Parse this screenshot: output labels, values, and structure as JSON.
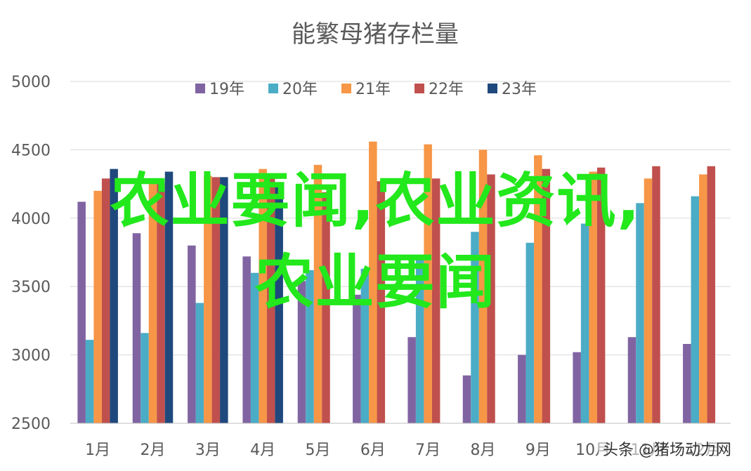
{
  "chart_data": {
    "type": "bar",
    "title": "能繁母猪存栏量",
    "categories": [
      "1月",
      "2月",
      "3月",
      "4月",
      "5月",
      "6月",
      "7月",
      "8月",
      "9月",
      "10月",
      "11月",
      "12月"
    ],
    "series": [
      {
        "name": "19年",
        "color": "#8064a2",
        "values": [
          4120,
          3890,
          3800,
          3720,
          3540,
          3440,
          3130,
          2850,
          3000,
          3020,
          3130,
          3080
        ]
      },
      {
        "name": "20年",
        "color": "#4bacc6",
        "values": [
          3110,
          3160,
          3380,
          3600,
          3620,
          3630,
          3700,
          3900,
          3820,
          3960,
          4110,
          4160
        ]
      },
      {
        "name": "21年",
        "color": "#f79646",
        "values": [
          4200,
          4250,
          4310,
          4360,
          4390,
          4560,
          4540,
          4500,
          4460,
          4340,
          4290,
          4320
        ]
      },
      {
        "name": "22年",
        "color": "#c0504d",
        "values": [
          4290,
          4260,
          4300,
          4300,
          4190,
          4270,
          4290,
          4320,
          4360,
          4370,
          4380,
          4380
        ]
      },
      {
        "name": "23年",
        "color": "#1f497d",
        "values": [
          4360,
          4340,
          4300,
          4240,
          null,
          null,
          null,
          null,
          null,
          null,
          null,
          null
        ]
      }
    ],
    "ylim": [
      2500,
      5000
    ],
    "yticks": [
      2500,
      3000,
      3500,
      4000,
      4500,
      5000
    ],
    "grid": true,
    "legend": "top-center"
  },
  "overlay": {
    "line1": "农业要闻,农业资讯,",
    "line2": "农业要闻"
  },
  "watermark": "头条 @猪场动力网"
}
